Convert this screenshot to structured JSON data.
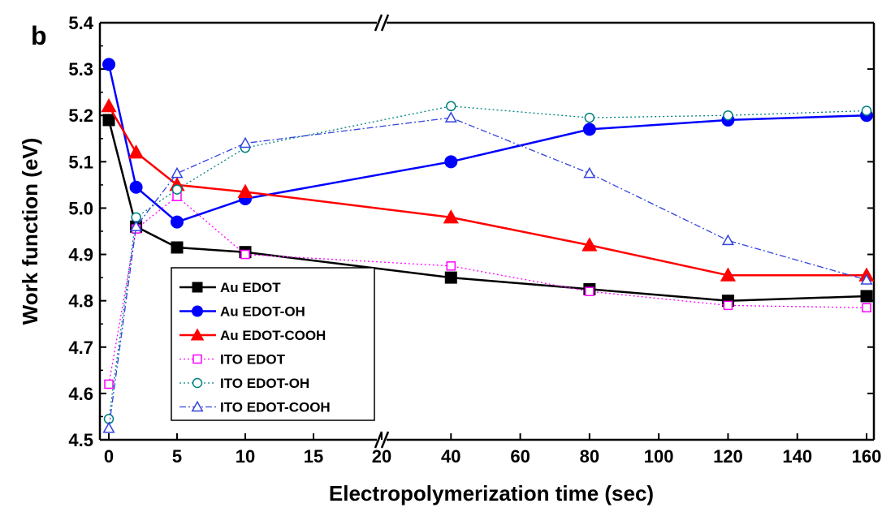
{
  "chart_data": {
    "type": "line",
    "panel_label": "b",
    "xlabel": "Electropolymerization time (sec)",
    "ylabel": "Work function (eV)",
    "ylim": [
      4.5,
      5.4
    ],
    "y_ticks": [
      "4.5",
      "4.6",
      "4.7",
      "4.8",
      "4.9",
      "5.0",
      "5.1",
      "5.2",
      "5.3",
      "5.4"
    ],
    "x_axis": "broken axis: 0–20 s then 20–160 s",
    "x_ticks": [
      "0",
      "5",
      "10",
      "15",
      "20",
      "40",
      "60",
      "80",
      "100",
      "120",
      "140",
      "160"
    ],
    "x": [
      0,
      2,
      5,
      10,
      40,
      80,
      120,
      160
    ],
    "grid": false,
    "legend_position": "bottom-left",
    "series": [
      {
        "name": "Au EDOT",
        "color": "#000000",
        "marker": "square-filled",
        "line": "solid",
        "values": [
          5.19,
          4.96,
          4.915,
          4.905,
          4.85,
          4.825,
          4.8,
          4.81
        ]
      },
      {
        "name": "Au EDOT-OH",
        "color": "#0000ff",
        "marker": "circle-filled",
        "line": "solid",
        "values": [
          5.31,
          5.045,
          4.97,
          5.02,
          5.1,
          5.17,
          5.19,
          5.2
        ]
      },
      {
        "name": "Au EDOT-COOH",
        "color": "#ff0000",
        "marker": "triangle-filled",
        "line": "solid",
        "values": [
          5.22,
          5.12,
          5.05,
          5.035,
          4.98,
          4.92,
          4.855,
          4.855
        ]
      },
      {
        "name": "ITO EDOT",
        "color": "#ff00ff",
        "marker": "square-open",
        "line": "dotted",
        "values": [
          4.62,
          4.955,
          5.025,
          4.9,
          4.875,
          4.82,
          4.79,
          4.785
        ]
      },
      {
        "name": "ITO EDOT-OH",
        "color": "#008080",
        "marker": "circle-open",
        "line": "dotted",
        "values": [
          4.545,
          4.98,
          5.04,
          5.13,
          5.22,
          5.195,
          5.2,
          5.21
        ]
      },
      {
        "name": "ITO EDOT-COOH",
        "color": "#3344dd",
        "marker": "triangle-open",
        "line": "dash-dot",
        "values": [
          4.525,
          4.96,
          5.075,
          5.14,
          5.195,
          5.075,
          4.93,
          4.845
        ]
      }
    ]
  }
}
